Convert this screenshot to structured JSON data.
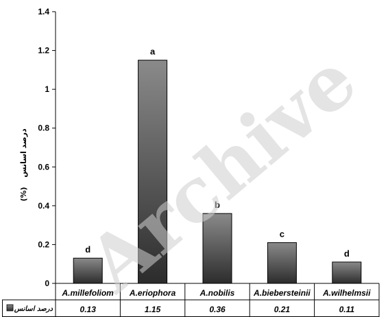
{
  "chart_data": {
    "type": "bar",
    "ylabel": "درصد اسانس",
    "ylabel_unit": "(%)",
    "ylim": [
      0,
      1.4
    ],
    "yticks": [
      "0",
      "0.2",
      "0.4",
      "0.6",
      "0.8",
      "1",
      "1.2",
      "1.4"
    ],
    "grid": false,
    "categories": [
      "A.millefoliom",
      "A.eriophora",
      "A.nobilis",
      "A.biebersteinii",
      "A.wilhelmsii"
    ],
    "series": [
      {
        "name": "درصد اسانس",
        "values": [
          0.13,
          1.15,
          0.36,
          0.21,
          0.11
        ],
        "value_labels": [
          "0.13",
          "1.15",
          "0.36",
          "0.21",
          "0.11"
        ],
        "significance": [
          "d",
          "a",
          "b",
          "c",
          "d"
        ]
      }
    ],
    "data_table": true
  },
  "watermark": "Archive"
}
